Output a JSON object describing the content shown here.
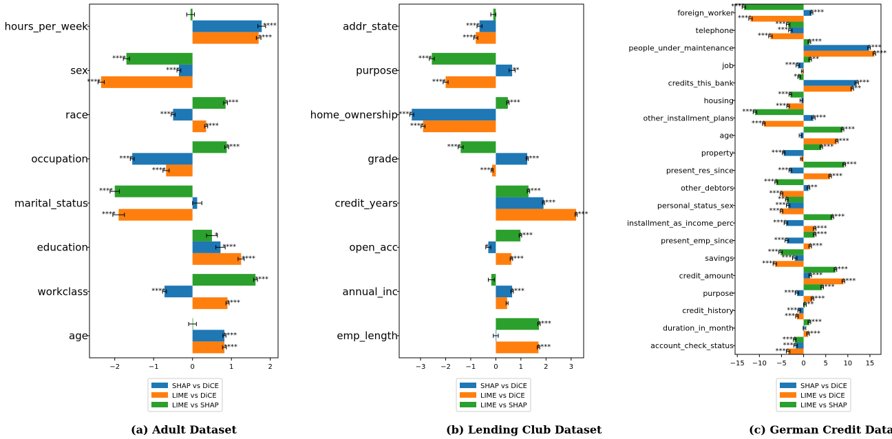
{
  "colors": {
    "shap_vs_dice": "#1f77b4",
    "lime_vs_dice": "#ff7f0e",
    "lime_vs_shap": "#2ca02c"
  },
  "chart_data": [
    {
      "type": "bar",
      "orientation": "horizontal",
      "caption": "(a) Adult Dataset",
      "categories": [
        "hours_per_week",
        "sex",
        "race",
        "occupation",
        "marital_status",
        "education",
        "workclass",
        "age"
      ],
      "xlim": [
        -2.65,
        2.2
      ],
      "xticks": [
        -2,
        -1,
        0,
        1,
        2
      ],
      "series": [
        {
          "name": "SHAP vs DiCE",
          "values": [
            1.78,
            -0.35,
            -0.5,
            -1.55,
            0.12,
            0.72,
            -0.72,
            0.82
          ],
          "errors": [
            0.1,
            0.05,
            0.05,
            0.05,
            0.12,
            0.12,
            0.05,
            0.04
          ],
          "sig": [
            "****",
            "****",
            "****",
            "****",
            "",
            "****",
            "****",
            "****"
          ]
        },
        {
          "name": "LIME vs DiCE",
          "values": [
            1.7,
            -2.35,
            0.35,
            -0.68,
            -1.9,
            1.25,
            0.9,
            0.82
          ],
          "errors": [
            0.06,
            0.08,
            0.04,
            0.08,
            0.15,
            0.08,
            0.04,
            0.05
          ],
          "sig": [
            "****",
            "****",
            "****",
            "****",
            "****",
            "****",
            "****",
            "****"
          ]
        },
        {
          "name": "LIME vs SHAP",
          "values": [
            -0.05,
            -1.7,
            0.85,
            0.88,
            -2.0,
            0.5,
            1.62,
            0.0
          ],
          "errors": [
            0.1,
            0.08,
            0.05,
            0.05,
            0.12,
            0.14,
            0.05,
            0.1
          ],
          "sig": [
            "",
            "****",
            "****",
            "****",
            "****",
            "*",
            "****",
            ""
          ]
        }
      ]
    },
    {
      "type": "bar",
      "orientation": "horizontal",
      "caption": "(b) Lending Club Dataset",
      "categories": [
        "addr_state",
        "purpose",
        "home_ownership",
        "grade",
        "credit_years",
        "open_acc",
        "annual_inc",
        "emp_length"
      ],
      "xlim": [
        -3.85,
        3.5
      ],
      "xticks": [
        -3,
        -2,
        -1,
        0,
        1,
        2,
        3
      ],
      "series": [
        {
          "name": "SHAP vs DiCE",
          "values": [
            -0.65,
            0.65,
            -3.35,
            1.25,
            1.9,
            -0.3,
            0.65,
            0.0
          ],
          "errors": [
            0.1,
            0.12,
            0.08,
            0.04,
            0.04,
            0.1,
            0.05,
            0.1
          ],
          "sig": [
            "****",
            "**",
            "****",
            "****",
            "****",
            "*",
            "****",
            ""
          ]
        },
        {
          "name": "LIME vs DiCE",
          "values": [
            -0.8,
            -2.0,
            -2.9,
            -0.15,
            3.2,
            0.62,
            0.45,
            1.7
          ],
          "errors": [
            0.08,
            0.1,
            0.08,
            0.04,
            0.04,
            0.05,
            0.04,
            0.05
          ],
          "sig": [
            "****",
            "****",
            "****",
            "****",
            "****",
            "****",
            "",
            "****"
          ]
        },
        {
          "name": "LIME vs SHAP",
          "values": [
            -0.1,
            -2.55,
            0.48,
            -1.4,
            1.3,
            0.98,
            -0.18,
            1.72
          ],
          "errors": [
            0.1,
            0.1,
            0.05,
            0.1,
            0.05,
            0.05,
            0.12,
            0.05
          ],
          "sig": [
            "",
            "****",
            "****",
            "****",
            "****",
            "****",
            "",
            "****"
          ]
        }
      ]
    },
    {
      "type": "bar",
      "orientation": "horizontal",
      "caption": "(c) German Credit Dataset",
      "categories": [
        "foreign_worker",
        "telephone",
        "people_under_maintenance",
        "job",
        "credits_this_bank",
        "housing",
        "other_installment_plans",
        "age",
        "property",
        "present_res_since",
        "other_debtors",
        "personal_status_sex",
        "installment_as_income_perc",
        "present_emp_since",
        "savings",
        "credit_amount",
        "purpose",
        "credit_history",
        "duration_in_month",
        "account_check_status"
      ],
      "xlim": [
        -15.5,
        17.5
      ],
      "xticks": [
        -15,
        -10,
        -5,
        0,
        5,
        10,
        15
      ],
      "series": [
        {
          "name": "SHAP vs DiCE",
          "values": [
            1.8,
            -3.0,
            14.8,
            -1.3,
            12.0,
            -0.5,
            2.2,
            -0.7,
            -4.5,
            -3.0,
            1.1,
            -3.5,
            -4.0,
            -3.8,
            -2.0,
            1.5,
            -1.5,
            -1.0,
            0.2,
            -1.8
          ],
          "errors": [
            0.3,
            0.4,
            0.3,
            0.4,
            0.4,
            0.3,
            0.4,
            0.3,
            0.3,
            0.3,
            0.3,
            0.4,
            0.4,
            0.4,
            0.5,
            0.3,
            0.4,
            0.3,
            0.3,
            0.4
          ],
          "sig": [
            "****",
            "****",
            "****",
            "****",
            "****",
            "",
            "****",
            "",
            "****",
            "****",
            "***",
            "****",
            "****",
            "****",
            "****",
            "****",
            "****",
            "****",
            "",
            "****"
          ]
        },
        {
          "name": "LIME vs DiCE",
          "values": [
            -12.0,
            -7.5,
            16.0,
            -0.3,
            11.0,
            -3.5,
            -9.0,
            7.5,
            -0.5,
            6.0,
            -5.0,
            -5.0,
            2.5,
            1.5,
            -6.5,
            9.0,
            2.0,
            -1.5,
            1.0,
            -3.5
          ],
          "errors": [
            0.4,
            0.4,
            0.3,
            0.2,
            0.3,
            0.3,
            0.3,
            0.3,
            0.2,
            0.3,
            0.3,
            0.3,
            0.3,
            0.3,
            0.4,
            0.3,
            0.3,
            0.3,
            0.3,
            0.4
          ],
          "sig": [
            "****",
            "****",
            "****",
            "",
            "***",
            "****",
            "****",
            "****",
            "",
            "****",
            "****",
            "****",
            "****",
            "****",
            "****",
            "****",
            "****",
            "****",
            "****",
            "****"
          ]
        },
        {
          "name": "LIME vs SHAP",
          "values": [
            -13.5,
            -3.5,
            1.3,
            1.5,
            -1.0,
            -3.0,
            -11.0,
            8.8,
            4.0,
            9.2,
            -6.2,
            -3.8,
            6.5,
            2.5,
            -5.2,
            7.2,
            4.2,
            0.3,
            1.3,
            -2.0
          ],
          "errors": [
            0.4,
            0.4,
            0.3,
            0.3,
            0.3,
            0.3,
            0.4,
            0.3,
            0.3,
            0.3,
            0.3,
            0.3,
            0.3,
            0.3,
            0.4,
            0.3,
            0.3,
            0.3,
            0.3,
            0.3
          ],
          "sig": [
            "****",
            "****",
            "****",
            "***",
            "**",
            "****",
            "****",
            "****",
            "****",
            "****",
            "****",
            "***",
            "****",
            "****",
            "****",
            "****",
            "****",
            "***",
            "****",
            "****"
          ]
        }
      ]
    }
  ]
}
